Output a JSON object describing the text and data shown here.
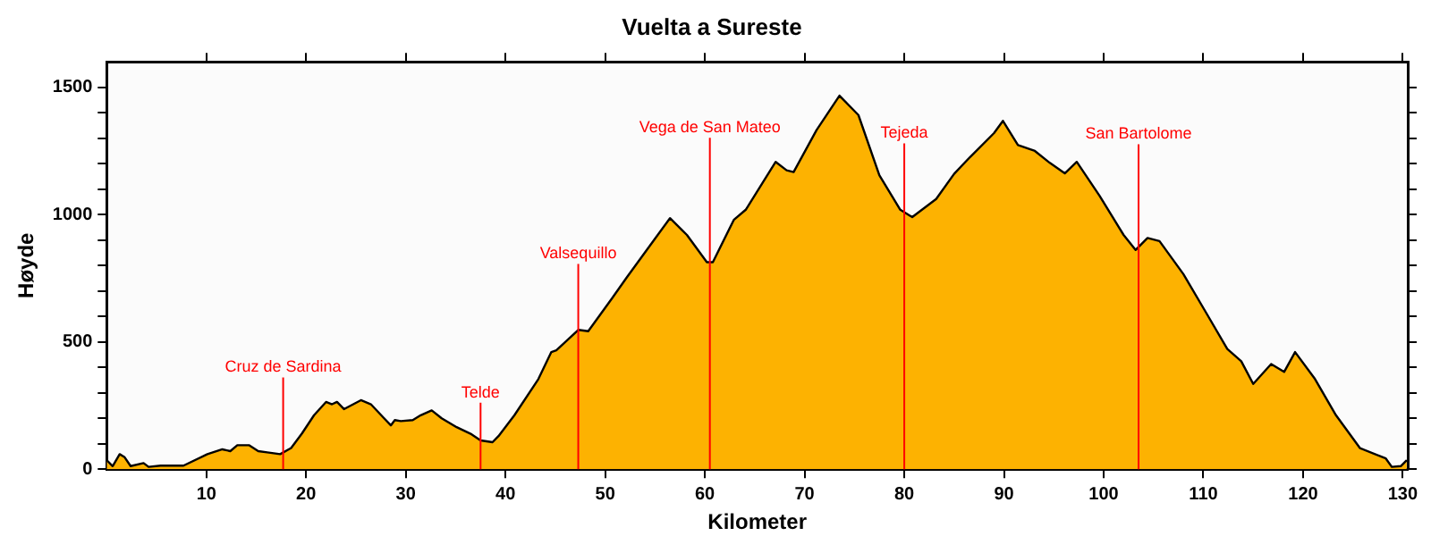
{
  "chart_data": {
    "type": "area",
    "title": "Vuelta a Sureste",
    "xlabel": "Kilometer",
    "ylabel": "Høyde",
    "xlim": [
      0,
      130.5
    ],
    "xticks": [
      10,
      20,
      30,
      40,
      50,
      60,
      70,
      80,
      90,
      100,
      110,
      120,
      130
    ],
    "ylim": [
      0,
      1600
    ],
    "yticks": [
      0,
      {
        "value": 100,
        "label": null
      },
      {
        "value": 200,
        "label": null
      },
      {
        "value": 300,
        "label": null
      },
      {
        "value": 400,
        "label": null
      },
      500,
      {
        "value": 600,
        "label": null
      },
      {
        "value": 700,
        "label": null
      },
      {
        "value": 800,
        "label": null
      },
      {
        "value": 900,
        "label": null
      },
      1000,
      {
        "value": 1100,
        "label": null
      },
      {
        "value": 1200,
        "label": null
      },
      {
        "value": 1300,
        "label": null
      },
      {
        "value": 1400,
        "label": null
      },
      1500
    ],
    "grid": false,
    "legend": false,
    "series": [
      {
        "color": "#fdb201",
        "x": [
          0,
          0.6,
          1.3,
          1.8,
          2.4,
          3.7,
          4.2,
          5.4,
          7.7,
          10.1,
          11.6,
          12.4,
          13.1,
          14.3,
          15.2,
          16.1,
          17.4,
          18.5,
          19.6,
          20.8,
          22,
          22.6,
          23.1,
          23.8,
          25.5,
          26.5,
          27.7,
          28.5,
          28.9,
          29.5,
          30.7,
          31.5,
          32.6,
          33.6,
          35.1,
          36.6,
          37.5,
          38.7,
          39.3,
          40.9,
          43.3,
          44.6,
          45.1,
          47.3,
          48.3,
          50.7,
          52.2,
          54.6,
          56.5,
          58.2,
          60.2,
          60.8,
          62.9,
          64.1,
          67.1,
          68.2,
          68.9,
          71.2,
          73.5,
          75.4,
          77.5,
          79.6,
          80.8,
          83.2,
          85,
          86.6,
          89,
          89.9,
          91.4,
          93.1,
          94.6,
          96.1,
          97.3,
          99.6,
          102,
          103.2,
          104.4,
          105.6,
          108,
          110.3,
          112.4,
          113.8,
          115,
          116.8,
          118.1,
          119.2,
          121.2,
          123.3,
          125.7,
          128.3,
          128.9,
          129.8,
          130.4
        ],
        "values": [
          35,
          12,
          59,
          47,
          12,
          24,
          9,
          14,
          14,
          59,
          78,
          71,
          94,
          94,
          71,
          66,
          59,
          83,
          141,
          212,
          264,
          255,
          264,
          236,
          271,
          255,
          205,
          172,
          193,
          189,
          193,
          212,
          231,
          200,
          165,
          137,
          113,
          106,
          130,
          212,
          354,
          460,
          467,
          547,
          542,
          672,
          755,
          884,
          986,
          920,
          813,
          813,
          979,
          1019,
          1207,
          1174,
          1167,
          1332,
          1467,
          1391,
          1155,
          1019,
          990,
          1061,
          1160,
          1226,
          1320,
          1368,
          1273,
          1250,
          1203,
          1162,
          1207,
          1073,
          920,
          861,
          908,
          896,
          766,
          613,
          472,
          424,
          335,
          413,
          382,
          460,
          354,
          212,
          83,
          42,
          9,
          12,
          35
        ]
      }
    ],
    "ref_lines": [
      {
        "axis": "x",
        "value": 17.7,
        "label": "Cruz de Sardina",
        "color": "#ff0000"
      },
      {
        "axis": "x",
        "value": 37.5,
        "label": "Telde",
        "color": "#ff0000"
      },
      {
        "axis": "x",
        "value": 47.3,
        "label": "Valsequillo",
        "color": "#ff0000"
      },
      {
        "axis": "x",
        "value": 60.5,
        "label": "Vega de San Mateo",
        "color": "#ff0000"
      },
      {
        "axis": "x",
        "value": 80,
        "label": "Tejeda",
        "color": "#ff0000"
      },
      {
        "axis": "x",
        "value": 103.5,
        "label": "San Bartolome",
        "color": "#ff0000"
      }
    ]
  }
}
